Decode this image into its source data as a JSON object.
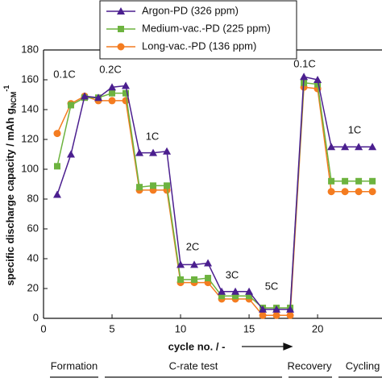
{
  "chart_data": {
    "type": "line",
    "x_label": "cycle no. / -",
    "y_label": "specific discharge capacity / mAh g",
    "y_label_sub": "NCM",
    "y_label_sup": "-1",
    "x": [
      1,
      2,
      3,
      4,
      5,
      6,
      7,
      8,
      9,
      10,
      11,
      12,
      13,
      14,
      15,
      16,
      17,
      18,
      19,
      20,
      21,
      22,
      23,
      24
    ],
    "series": [
      {
        "name": "Argon-PD (326 ppm)",
        "color": "#4b1f8f",
        "marker": "triangle",
        "values": [
          83,
          110,
          149,
          148,
          155,
          156,
          111,
          111,
          112,
          36,
          36,
          37,
          18,
          18,
          18,
          6,
          6,
          6,
          162,
          160,
          115,
          115,
          115,
          115
        ]
      },
      {
        "name": "Medium-vac.-PD (225 ppm)",
        "color": "#6db33f",
        "marker": "square",
        "values": [
          102,
          143,
          148,
          148,
          151,
          151,
          88,
          89,
          89,
          26,
          26,
          27,
          15,
          15,
          15,
          7,
          7,
          7,
          158,
          157,
          92,
          92,
          92,
          92
        ]
      },
      {
        "name": "Long-vac.-PD (136 ppm)",
        "color": "#f47c20",
        "marker": "circle",
        "values": [
          124,
          144,
          149,
          146,
          146,
          146,
          86,
          86,
          86,
          24,
          24,
          24,
          13,
          13,
          13,
          2,
          2,
          2,
          155,
          154,
          85,
          85,
          85,
          85
        ]
      }
    ],
    "xlim": [
      0,
      24.7
    ],
    "ylim": [
      0,
      180
    ],
    "xticks": [
      0,
      5,
      10,
      15,
      20
    ],
    "yticks": [
      0,
      20,
      40,
      60,
      80,
      100,
      120,
      140,
      160,
      180
    ],
    "annotations": [
      "0.1C",
      "0.2C",
      "1C",
      "2C",
      "3C",
      "5C",
      "0.1C",
      "1C"
    ],
    "phases": [
      "Formation",
      "C-rate test",
      "Recovery",
      "Cycling"
    ]
  }
}
